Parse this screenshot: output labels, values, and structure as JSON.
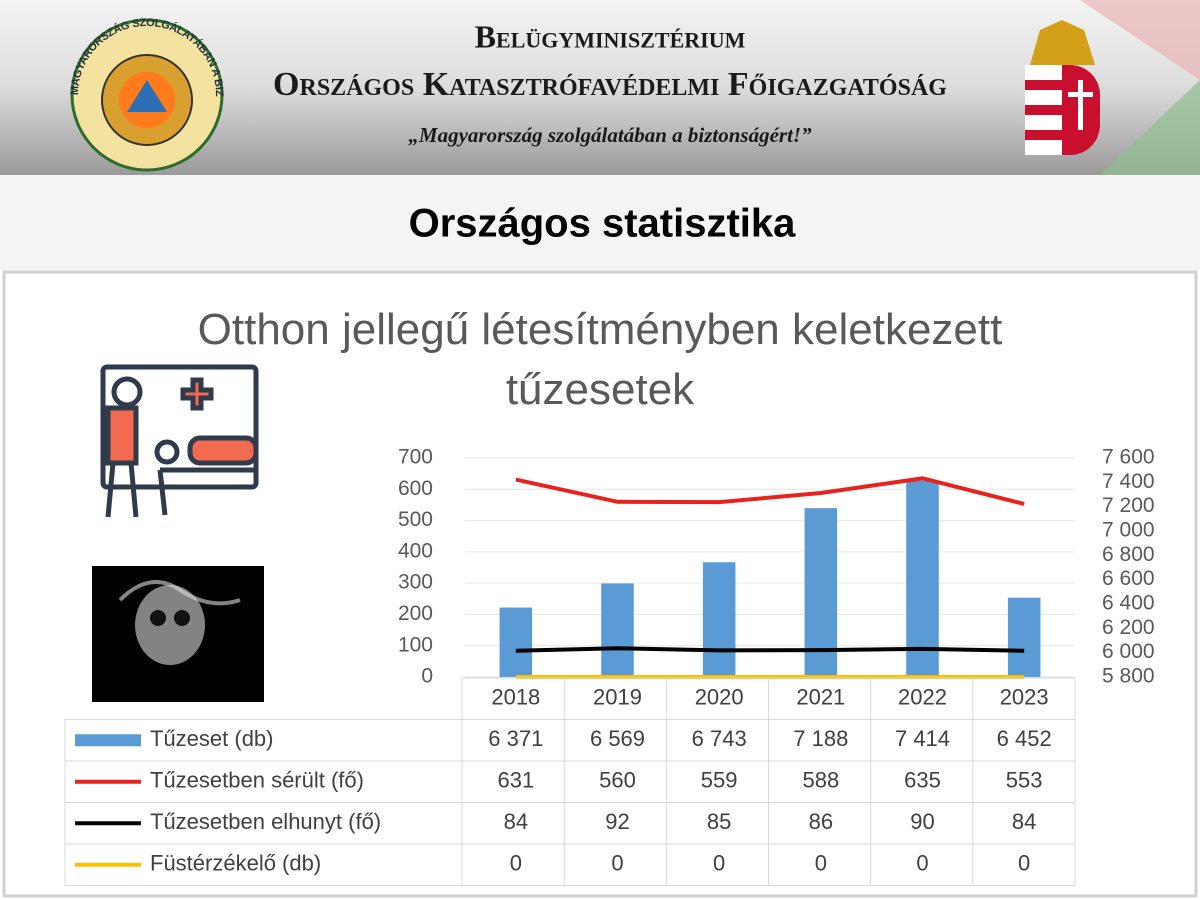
{
  "header": {
    "logo_text": "MAGYARORSZÁG SZOLGÁLATÁBAN A BIZTONSÁGÉRT",
    "ministry": "Belügyminisztérium",
    "agency": "Országos Katasztrófavédelmi Főigazgatóság",
    "motto": "„Magyarország szolgálatában a biztonságért!”"
  },
  "page_title": "Országos statisztika",
  "chart_data": {
    "type": "bar-line",
    "title": "Otthon jellegű létesítményben keletkezett tűzesetek",
    "categories": [
      "2018",
      "2019",
      "2020",
      "2021",
      "2022",
      "2023"
    ],
    "series": [
      {
        "name": "Tűzeset (db)",
        "type": "bar",
        "axis": "y2",
        "color": "#5b9bd5",
        "values": [
          6371,
          6569,
          6743,
          7188,
          7414,
          6452
        ],
        "value_labels": [
          "6 371",
          "6 569",
          "6 743",
          "7 188",
          "7 414",
          "6 452"
        ]
      },
      {
        "name": "Tűzesetben sérült (fő)",
        "type": "line",
        "color": "#e8231f",
        "values": [
          631,
          560,
          559,
          588,
          635,
          553
        ]
      },
      {
        "name": "Tűzesetben elhunyt (fő)",
        "type": "line",
        "color": "#000000",
        "values": [
          84,
          92,
          85,
          86,
          90,
          84
        ]
      },
      {
        "name": "Füstérzékelő (db)",
        "type": "line",
        "color": "#ffc000",
        "values": [
          0,
          0,
          0,
          0,
          0,
          0
        ]
      }
    ],
    "ylim": [
      0,
      700
    ],
    "yticks": [
      0,
      100,
      200,
      300,
      400,
      500,
      600,
      700
    ],
    "y2lim": [
      5800,
      7600
    ],
    "y2ticks": [
      {
        "value": 5800,
        "label": "5 800"
      },
      {
        "value": 6000,
        "label": "6 000"
      },
      {
        "value": 6200,
        "label": "6 200"
      },
      {
        "value": 6400,
        "label": "6 400"
      },
      {
        "value": 6600,
        "label": "6 600"
      },
      {
        "value": 6800,
        "label": "6 800"
      },
      {
        "value": 7000,
        "label": "7 000"
      },
      {
        "value": 7200,
        "label": "7 200"
      },
      {
        "value": 7400,
        "label": "7 400"
      },
      {
        "value": 7600,
        "label": "7 600"
      }
    ],
    "grid": true
  }
}
